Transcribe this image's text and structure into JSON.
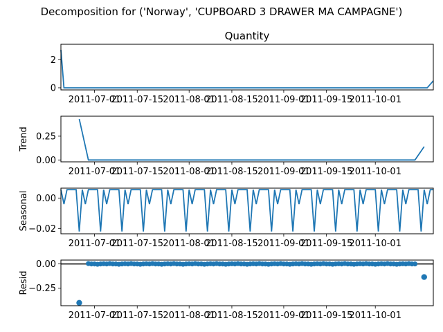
{
  "figure": {
    "suptitle": "Decomposition for ('Norway', 'CUPBOARD 3 DRAWER MA CAMPAGNE')"
  },
  "chart_data": [
    {
      "type": "line",
      "title": "Quantity",
      "ylabel": "",
      "x": "daily dates 2011-06-20 .. 2011-10-20",
      "ylim": [
        -0.15,
        3.1
      ],
      "yticks": [
        0,
        2
      ],
      "xtick_labels": [
        "2011-07-01",
        "2011-07-15",
        "2011-08-01",
        "2011-08-15",
        "2011-09-01",
        "2011-09-15",
        "2011-10-01"
      ],
      "xtick_dates": [
        "2011-07-01",
        "2011-07-15",
        "2011-08-01",
        "2011-08-15",
        "2011-09-01",
        "2011-09-15",
        "2011-10-01"
      ],
      "x_start": "2011-06-20",
      "x_end": "2011-10-20",
      "points": [
        [
          "2011-06-20",
          2.7
        ],
        [
          "2011-06-21",
          0
        ],
        [
          "2011-10-18",
          0
        ],
        [
          "2011-10-20",
          0.5
        ]
      ]
    },
    {
      "type": "line",
      "title": "",
      "ylabel": "Trend",
      "ylim": [
        -0.02,
        0.46
      ],
      "yticks": [
        0.0,
        0.25
      ],
      "ytick_labels": [
        "0.00",
        "0.25"
      ],
      "xtick_labels": [
        "2011-07-01",
        "2011-07-15",
        "2011-08-01",
        "2011-08-15",
        "2011-09-01",
        "2011-09-15",
        "2011-10-01"
      ],
      "points": [
        [
          "2011-06-26",
          0.43
        ],
        [
          "2011-06-29",
          0
        ],
        [
          "2011-10-14",
          0
        ],
        [
          "2011-10-17",
          0.14
        ]
      ]
    },
    {
      "type": "line",
      "title": "",
      "ylabel": "Seasonal",
      "ylim": [
        -0.0235,
        0.0065
      ],
      "yticks": [
        0.0,
        -0.02
      ],
      "ytick_labels": [
        "0.00",
        "−0.02"
      ],
      "xtick_labels": [
        "2011-07-01",
        "2011-07-15",
        "2011-08-01",
        "2011-08-15",
        "2011-09-01",
        "2011-09-15",
        "2011-10-01"
      ],
      "weekly_pattern": [
        0.0055,
        0.0055,
        0.0055,
        -0.022,
        0.0055,
        -0.004,
        0.0055
      ],
      "pattern_start": "2011-06-23"
    },
    {
      "type": "scatter",
      "title": "",
      "ylabel": "Resid",
      "ylim": [
        -0.43,
        0.04
      ],
      "yticks": [
        0.0,
        -0.25
      ],
      "ytick_labels": [
        "0.00",
        "−0.25"
      ],
      "xtick_labels": [
        "2011-07-01",
        "2011-07-15",
        "2011-08-01",
        "2011-08-15",
        "2011-09-01",
        "2011-09-15",
        "2011-10-01"
      ],
      "outliers": [
        [
          "2011-06-26",
          -0.4
        ],
        [
          "2011-10-17",
          -0.135
        ]
      ],
      "range_start": "2011-06-29",
      "range_end": "2011-10-14",
      "pattern": [
        0.004,
        0.0,
        0.0,
        -0.003,
        0.0,
        0.002,
        0.0
      ]
    }
  ]
}
